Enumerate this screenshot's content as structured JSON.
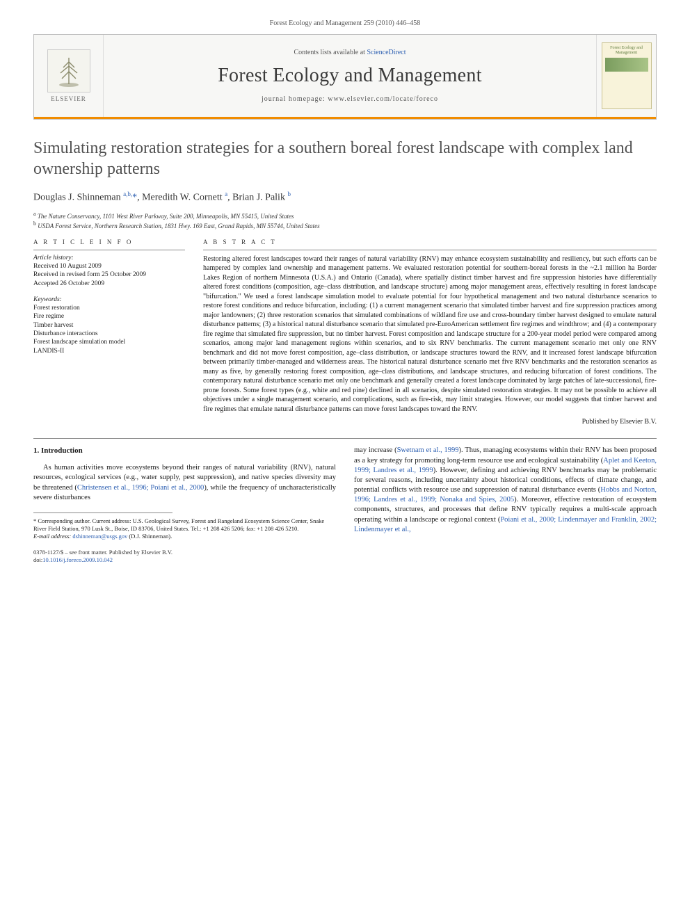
{
  "running_header": "Forest Ecology and Management 259 (2010) 446–458",
  "banner": {
    "contents_prefix": "Contents lists available at ",
    "contents_link": "ScienceDirect",
    "journal_title": "Forest Ecology and Management",
    "homepage_prefix": "journal homepage: ",
    "homepage_url": "www.elsevier.com/locate/foreco",
    "publisher": "ELSEVIER",
    "cover_title": "Forest Ecology and Management"
  },
  "article": {
    "title": "Simulating restoration strategies for a southern boreal forest landscape with complex land ownership patterns",
    "authors_html": "Douglas J. Shinneman <sup>a,b,</sup><span class='ast'>*</span>, Meredith W. Cornett <sup>a</sup>, Brian J. Palik <sup>b</sup>",
    "affiliations": [
      "a The Nature Conservancy, 1101 West River Parkway, Suite 200, Minneapolis, MN 55415, United States",
      "b USDA Forest Service, Northern Research Station, 1831 Hwy. 169 East, Grand Rapids, MN 55744, United States"
    ]
  },
  "info": {
    "label": "A R T I C L E   I N F O",
    "history_label": "Article history:",
    "history": [
      "Received 10 August 2009",
      "Received in revised form 25 October 2009",
      "Accepted 26 October 2009"
    ],
    "keywords_label": "Keywords:",
    "keywords": [
      "Forest restoration",
      "Fire regime",
      "Timber harvest",
      "Disturbance interactions",
      "Forest landscape simulation model",
      "LANDIS-II"
    ]
  },
  "abstract": {
    "label": "A B S T R A C T",
    "text": "Restoring altered forest landscapes toward their ranges of natural variability (RNV) may enhance ecosystem sustainability and resiliency, but such efforts can be hampered by complex land ownership and management patterns. We evaluated restoration potential for southern-boreal forests in the ~2.1 million ha Border Lakes Region of northern Minnesota (U.S.A.) and Ontario (Canada), where spatially distinct timber harvest and fire suppression histories have differentially altered forest conditions (composition, age–class distribution, and landscape structure) among major management areas, effectively resulting in forest landscape \"bifurcation.\" We used a forest landscape simulation model to evaluate potential for four hypothetical management and two natural disturbance scenarios to restore forest conditions and reduce bifurcation, including: (1) a current management scenario that simulated timber harvest and fire suppression practices among major landowners; (2) three restoration scenarios that simulated combinations of wildland fire use and cross-boundary timber harvest designed to emulate natural disturbance patterns; (3) a historical natural disturbance scenario that simulated pre-EuroAmerican settlement fire regimes and windthrow; and (4) a contemporary fire regime that simulated fire suppression, but no timber harvest. Forest composition and landscape structure for a 200-year model period were compared among scenarios, among major land management regions within scenarios, and to six RNV benchmarks. The current management scenario met only one RNV benchmark and did not move forest composition, age–class distribution, or landscape structures toward the RNV, and it increased forest landscape bifurcation between primarily timber-managed and wilderness areas. The historical natural disturbance scenario met five RNV benchmarks and the restoration scenarios as many as five, by generally restoring forest composition, age–class distributions, and landscape structures, and reducing bifurcation of forest conditions. The contemporary natural disturbance scenario met only one benchmark and generally created a forest landscape dominated by large patches of late-successional, fire-prone forests. Some forest types (e.g., white and red pine) declined in all scenarios, despite simulated restoration strategies. It may not be possible to achieve all objectives under a single management scenario, and complications, such as fire-risk, may limit strategies. However, our model suggests that timber harvest and fire regimes that emulate natural disturbance patterns can move forest landscapes toward the RNV.",
    "published_by": "Published by Elsevier B.V."
  },
  "body": {
    "section_number": "1.",
    "section_title": "Introduction",
    "para1_a": "As human activities move ecosystems beyond their ranges of natural variability (RNV), natural resources, ecological services (e.g., water supply, pest suppression), and native species diversity may be threatened (",
    "cite1": "Christensen et al., 1996; Poiani et al., 2000",
    "para1_b": "), while the frequency of uncharacteristically severe disturbances",
    "para2_a": "may increase (",
    "cite2": "Swetnam et al., 1999",
    "para2_b": "). Thus, managing ecosystems within their RNV has been proposed as a key strategy for promoting long-term resource use and ecological sustainability (",
    "cite3": "Aplet and Keeton, 1999; Landres et al., 1999",
    "para2_c": "). However, defining and achieving RNV benchmarks may be problematic for several reasons, including uncertainty about historical conditions, effects of climate change, and potential conflicts with resource use and suppression of natural disturbance events (",
    "cite4": "Hobbs and Norton, 1996; Landres et al., 1999; Nonaka and Spies, 2005",
    "para2_d": "). Moreover, effective restoration of ecosystem components, structures, and processes that define RNV typically requires a multi-scale approach operating within a landscape or regional context (",
    "cite5": "Poiani et al., 2000; Lindenmayer and Franklin, 2002; Lindenmayer et al.,"
  },
  "footnote": {
    "corr_label": "* Corresponding author.",
    "corr_text": " Current address: U.S. Geological Survey, Forest and Rangeland Ecosystem Science Center, Snake River Field Station, 970 Lusk St., Boise, ID 83706, United States. Tel.: +1 208 426 5206; fax: +1 208 426 5210.",
    "email_label": "E-mail address: ",
    "email": "dshinneman@usgs.gov",
    "email_suffix": " (D.J. Shinneman)."
  },
  "footer": {
    "line1": "0378-1127/$ – see front matter. Published by Elsevier B.V.",
    "doi_prefix": "doi:",
    "doi": "10.1016/j.foreco.2009.10.042"
  },
  "colors": {
    "accent_orange": "#f08c00",
    "link_blue": "#2a5db0",
    "text_gray": "#505050"
  }
}
